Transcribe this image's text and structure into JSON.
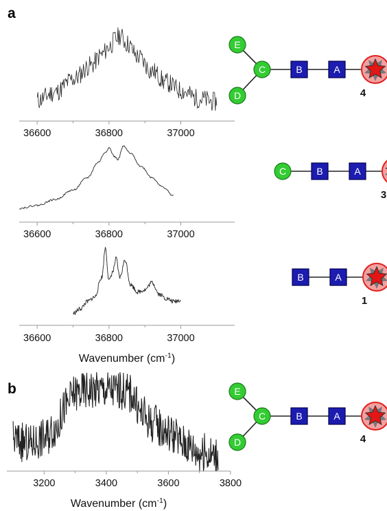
{
  "labels": {
    "panel_a": "a",
    "panel_b": "b"
  },
  "colors": {
    "trace": "#222222",
    "axis": "#999999",
    "green_node": "#33cc33",
    "green_node_stroke": "#1a7a1a",
    "blue_node": "#1c1cb0",
    "blue_node_stroke": "#000050",
    "ring_fill": "#f4a0a0",
    "ring_stroke": "#e02020",
    "star_fill": "#e41515",
    "star_back": "#777777"
  },
  "chart_data": [
    {
      "type": "line",
      "panel": "a",
      "series": [
        {
          "x_start": 36600,
          "x_end": 37100,
          "shape": "broad single peak near 36830 cm-1, dense noise",
          "points": [
            [
              36600,
              0.12
            ],
            [
              36650,
              0.22
            ],
            [
              36700,
              0.38
            ],
            [
              36750,
              0.55
            ],
            [
              36780,
              0.68
            ],
            [
              36800,
              0.78
            ],
            [
              36820,
              0.88
            ],
            [
              36830,
              0.92
            ],
            [
              36850,
              0.82
            ],
            [
              36880,
              0.66
            ],
            [
              36920,
              0.48
            ],
            [
              36960,
              0.34
            ],
            [
              37000,
              0.24
            ],
            [
              37050,
              0.14
            ],
            [
              37100,
              0.1
            ]
          ]
        }
      ],
      "xlim": [
        36550,
        37150
      ],
      "xticks": [
        36600,
        36800,
        37000
      ],
      "xtick_labels": [
        "36600",
        "36800",
        "37000"
      ],
      "xlabel": "",
      "structure": {
        "nodes": [
          "E",
          "C",
          "D",
          "B",
          "A"
        ],
        "compound": "4"
      }
    },
    {
      "type": "line",
      "panel": "a",
      "series": [
        {
          "x_start": 36550,
          "x_end": 36980,
          "shape": "smooth double peak near 36800 and 36840 cm-1",
          "points": [
            [
              36550,
              0.03
            ],
            [
              36600,
              0.07
            ],
            [
              36650,
              0.15
            ],
            [
              36700,
              0.28
            ],
            [
              36740,
              0.45
            ],
            [
              36770,
              0.66
            ],
            [
              36790,
              0.8
            ],
            [
              36800,
              0.86
            ],
            [
              36815,
              0.74
            ],
            [
              36825,
              0.7
            ],
            [
              36840,
              0.88
            ],
            [
              36860,
              0.78
            ],
            [
              36890,
              0.6
            ],
            [
              36920,
              0.45
            ],
            [
              36950,
              0.32
            ],
            [
              36980,
              0.2
            ]
          ]
        }
      ],
      "xlim": [
        36550,
        37150
      ],
      "xticks": [
        36600,
        36800,
        37000
      ],
      "xtick_labels": [
        "36600",
        "36800",
        "37000"
      ],
      "xlabel": "",
      "structure": {
        "nodes": [
          "C",
          "B",
          "A"
        ],
        "compound": "3"
      }
    },
    {
      "type": "line",
      "panel": "a",
      "series": [
        {
          "x_start": 36700,
          "x_end": 37000,
          "shape": "sharp peaks at 36790, 36820, 36845 cm-1 then lower features",
          "points": [
            [
              36700,
              0.06
            ],
            [
              36720,
              0.12
            ],
            [
              36740,
              0.22
            ],
            [
              36760,
              0.28
            ],
            [
              36780,
              0.55
            ],
            [
              36790,
              0.95
            ],
            [
              36800,
              0.5
            ],
            [
              36810,
              0.62
            ],
            [
              36820,
              0.8
            ],
            [
              36830,
              0.55
            ],
            [
              36845,
              0.78
            ],
            [
              36860,
              0.45
            ],
            [
              36880,
              0.35
            ],
            [
              36900,
              0.38
            ],
            [
              36920,
              0.48
            ],
            [
              36940,
              0.32
            ],
            [
              36960,
              0.26
            ],
            [
              36980,
              0.22
            ],
            [
              37000,
              0.24
            ]
          ]
        }
      ],
      "xlim": [
        36550,
        37150
      ],
      "xticks": [
        36600,
        36800,
        37000
      ],
      "xtick_labels": [
        "36600",
        "36800",
        "37000"
      ],
      "xlabel": "Wavenumber (cm",
      "xlabel_sup": "-1",
      "xlabel_close": ")",
      "structure": {
        "nodes": [
          "B",
          "A"
        ],
        "compound": "1"
      }
    },
    {
      "type": "line",
      "panel": "b",
      "series": [
        {
          "x_start": 3100,
          "x_end": 3760,
          "shape": "broad plateau 3300-3480 cm-1, very noisy",
          "points": [
            [
              3100,
              0.3
            ],
            [
              3150,
              0.25
            ],
            [
              3200,
              0.32
            ],
            [
              3240,
              0.45
            ],
            [
              3270,
              0.68
            ],
            [
              3300,
              0.82
            ],
            [
              3350,
              0.86
            ],
            [
              3400,
              0.86
            ],
            [
              3450,
              0.85
            ],
            [
              3480,
              0.82
            ],
            [
              3510,
              0.6
            ],
            [
              3550,
              0.48
            ],
            [
              3600,
              0.38
            ],
            [
              3650,
              0.26
            ],
            [
              3700,
              0.16
            ],
            [
              3760,
              0.12
            ]
          ]
        }
      ],
      "xlim": [
        3080,
        3800
      ],
      "xticks": [
        3200,
        3400,
        3600,
        3800
      ],
      "xtick_labels": [
        "3200",
        "3400",
        "3600",
        "3800"
      ],
      "xlabel": "Wavenumber (cm",
      "xlabel_sup": "-1",
      "xlabel_close": ")",
      "structure": {
        "nodes": [
          "E",
          "C",
          "D",
          "B",
          "A"
        ],
        "compound": "4"
      }
    }
  ]
}
